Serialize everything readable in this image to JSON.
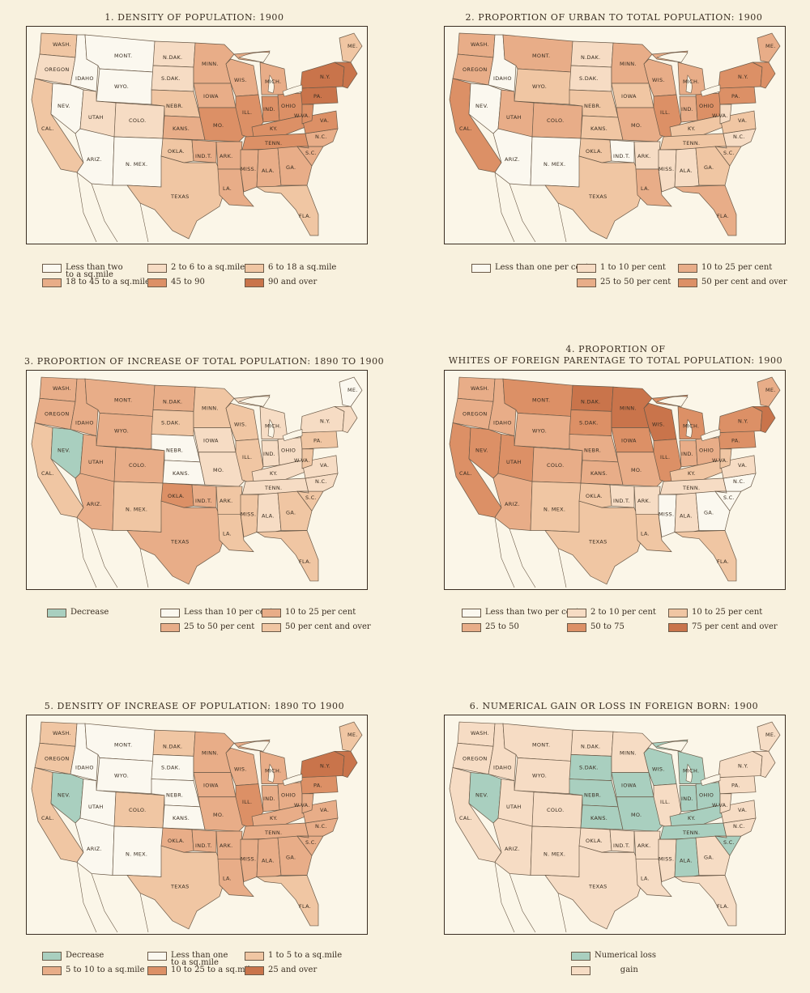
{
  "colors": {
    "white": "#fbf8ef",
    "c1": "#f6dcc4",
    "c2": "#f0c6a3",
    "c3": "#e8ad88",
    "c4": "#dc9066",
    "c5": "#c9744b",
    "green": "#a9cfbf",
    "border": "#6b5a48"
  },
  "maps": [
    {
      "title": "1. DENSITY OF POPULATION: 1900",
      "legend": [
        {
          "label": "Less than two\nto a sq.mile",
          "color": "white"
        },
        {
          "label": "2 to 6 to a sq.mile",
          "color": "c1"
        },
        {
          "label": "6 to 18 a sq.mile",
          "color": "c2"
        },
        {
          "label": "18 to 45 to a sq.mile",
          "color": "c3"
        },
        {
          "label": "45 to 90",
          "color": "c4"
        },
        {
          "label": "90 and over",
          "color": "c5"
        }
      ],
      "fill": {
        "WASH": "c2",
        "OREGON": "c1",
        "CAL": "c2",
        "IDAHO": "white",
        "NEV": "white",
        "MONT": "white",
        "WYO": "white",
        "UTAH": "c1",
        "COLO": "c1",
        "ARIZ": "white",
        "NMEX": "white",
        "NDAK": "c1",
        "SDAK": "c1",
        "NEBR": "c2",
        "KANS": "c3",
        "OKLA": "c2",
        "INDT": "c3",
        "TEXAS": "c2",
        "MINN": "c3",
        "IOWA": "c3",
        "MO": "c4",
        "ARK": "c3",
        "LA": "c3",
        "WIS": "c3",
        "ILL": "c4",
        "MICH": "c3",
        "IND": "c4",
        "OHIO": "c4",
        "KY": "c4",
        "TENN": "c4",
        "MISS": "c3",
        "ALA": "c3",
        "GA": "c3",
        "FLA": "c2",
        "SC": "c3",
        "NC": "c3",
        "VA": "c4",
        "WVA": "c4",
        "PA": "c5",
        "NY": "c5",
        "ME": "c2",
        "NE": "c5"
      }
    },
    {
      "title": "2. PROPORTION OF URBAN TO TOTAL POPULATION: 1900",
      "legend": [
        {
          "label": "Less than one per cent",
          "color": "white"
        },
        {
          "label": "1 to 10 per cent",
          "color": "c1"
        },
        {
          "label": "10 to 25 per cent",
          "color": "c3"
        },
        {
          "label": "25 to 50 per cent",
          "color": "c3"
        },
        {
          "label": "50 per cent and over",
          "color": "c4"
        }
      ],
      "fill": {
        "WASH": "c3",
        "OREGON": "c3",
        "CAL": "c4",
        "IDAHO": "white",
        "NEV": "white",
        "MONT": "c3",
        "WYO": "c2",
        "UTAH": "c3",
        "COLO": "c3",
        "ARIZ": "white",
        "NMEX": "white",
        "NDAK": "c1",
        "SDAK": "c1",
        "NEBR": "c2",
        "KANS": "c2",
        "OKLA": "c2",
        "INDT": "white",
        "TEXAS": "c2",
        "MINN": "c3",
        "IOWA": "c2",
        "MO": "c3",
        "ARK": "c1",
        "LA": "c3",
        "WIS": "c3",
        "ILL": "c4",
        "MICH": "c3",
        "IND": "c3",
        "OHIO": "c4",
        "KY": "c2",
        "TENN": "c2",
        "MISS": "c1",
        "ALA": "c1",
        "GA": "c2",
        "FLA": "c3",
        "SC": "c2",
        "NC": "c1",
        "VA": "c2",
        "WVA": "c1",
        "PA": "c4",
        "NY": "c4",
        "ME": "c3",
        "NE": "c4"
      }
    },
    {
      "title": "3. PROPORTION OF INCREASE OF TOTAL POPULATION: 1890 TO 1900",
      "legend": [
        {
          "label": "Decrease",
          "color": "green"
        },
        {
          "label": "Less than 10 per cent",
          "color": "white"
        },
        {
          "label": "10 to 25 per cent",
          "color": "c3"
        },
        {
          "label": "25 to 50 per cent",
          "color": "c3"
        },
        {
          "label": "50 per cent and over",
          "color": "c2"
        }
      ],
      "fill": {
        "WASH": "c3",
        "OREGON": "c3",
        "CAL": "c2",
        "IDAHO": "c3",
        "NEV": "green",
        "MONT": "c3",
        "WYO": "c3",
        "UTAH": "c3",
        "COLO": "c3",
        "ARIZ": "c3",
        "NMEX": "c2",
        "NDAK": "c3",
        "SDAK": "c2",
        "NEBR": "white",
        "KANS": "white",
        "OKLA": "c4",
        "INDT": "c3",
        "TEXAS": "c3",
        "MINN": "c2",
        "IOWA": "c1",
        "MO": "c1",
        "ARK": "c2",
        "LA": "c2",
        "WIS": "c2",
        "ILL": "c2",
        "MICH": "c1",
        "IND": "c1",
        "OHIO": "c1",
        "KY": "c1",
        "TENN": "c1",
        "MISS": "c2",
        "ALA": "c1",
        "GA": "c2",
        "FLA": "c2",
        "SC": "c2",
        "NC": "c1",
        "VA": "c1",
        "WVA": "c2",
        "PA": "c2",
        "NY": "c1",
        "ME": "white",
        "NE": "c1"
      }
    },
    {
      "title": "4. PROPORTION OF\nWHITES OF FOREIGN PARENTAGE TO TOTAL POPULATION: 1900",
      "legend": [
        {
          "label": "Less than two per cent",
          "color": "white"
        },
        {
          "label": "2 to 10 per cent",
          "color": "c1"
        },
        {
          "label": "10 to 25 per cent",
          "color": "c2"
        },
        {
          "label": "25 to 50",
          "color": "c3"
        },
        {
          "label": "50 to 75",
          "color": "c4"
        },
        {
          "label": "75 per cent and over",
          "color": "c5"
        }
      ],
      "fill": {
        "WASH": "c3",
        "OREGON": "c3",
        "CAL": "c4",
        "IDAHO": "c3",
        "NEV": "c4",
        "MONT": "c4",
        "WYO": "c3",
        "UTAH": "c4",
        "COLO": "c3",
        "ARIZ": "c3",
        "NMEX": "c2",
        "NDAK": "c5",
        "SDAK": "c4",
        "NEBR": "c3",
        "KANS": "c3",
        "OKLA": "c2",
        "INDT": "c1",
        "TEXAS": "c2",
        "MINN": "c5",
        "IOWA": "c4",
        "MO": "c3",
        "ARK": "c1",
        "LA": "c2",
        "WIS": "c5",
        "ILL": "c4",
        "MICH": "c4",
        "IND": "c3",
        "OHIO": "c3",
        "KY": "c2",
        "TENN": "c1",
        "MISS": "white",
        "ALA": "c1",
        "GA": "white",
        "FLA": "c2",
        "SC": "white",
        "NC": "white",
        "VA": "c1",
        "WVA": "c2",
        "PA": "c4",
        "NY": "c4",
        "ME": "c3",
        "NE": "c5"
      }
    },
    {
      "title": "5. DENSITY OF INCREASE OF POPULATION: 1890 TO 1900",
      "legend": [
        {
          "label": "Decrease",
          "color": "green"
        },
        {
          "label": "Less than one\nto a sq.mile",
          "color": "white"
        },
        {
          "label": "1 to 5 to a sq.mile",
          "color": "c2"
        },
        {
          "label": "5 to 10 to a sq.mile",
          "color": "c3"
        },
        {
          "label": "10 to 25 to a sq.mile",
          "color": "c4"
        },
        {
          "label": "25 and over",
          "color": "c5"
        }
      ],
      "fill": {
        "WASH": "c2",
        "OREGON": "c2",
        "CAL": "c2",
        "IDAHO": "white",
        "NEV": "green",
        "MONT": "white",
        "WYO": "white",
        "UTAH": "white",
        "COLO": "c2",
        "ARIZ": "white",
        "NMEX": "white",
        "NDAK": "c2",
        "SDAK": "white",
        "NEBR": "white",
        "KANS": "white",
        "OKLA": "c3",
        "INDT": "c3",
        "TEXAS": "c2",
        "MINN": "c3",
        "IOWA": "c3",
        "MO": "c3",
        "ARK": "c3",
        "LA": "c3",
        "WIS": "c3",
        "ILL": "c4",
        "MICH": "c3",
        "IND": "c3",
        "OHIO": "c3",
        "KY": "c3",
        "TENN": "c3",
        "MISS": "c3",
        "ALA": "c3",
        "GA": "c3",
        "FLA": "c2",
        "SC": "c3",
        "NC": "c3",
        "VA": "c3",
        "WVA": "c3",
        "PA": "c4",
        "NY": "c5",
        "ME": "c2",
        "NE": "c5"
      }
    },
    {
      "title": "6. NUMERICAL GAIN OR LOSS IN FOREIGN BORN: 1900",
      "legend": [
        {
          "label": "Numerical loss",
          "color": "green"
        },
        {
          "label": "          gain",
          "color": "c1"
        }
      ],
      "fill": {
        "WASH": "c1",
        "OREGON": "c1",
        "CAL": "c1",
        "IDAHO": "c1",
        "NEV": "green",
        "MONT": "c1",
        "WYO": "c1",
        "UTAH": "c1",
        "COLO": "c1",
        "ARIZ": "c1",
        "NMEX": "c1",
        "NDAK": "c1",
        "SDAK": "green",
        "NEBR": "green",
        "KANS": "green",
        "OKLA": "c1",
        "INDT": "c1",
        "TEXAS": "c1",
        "MINN": "c1",
        "IOWA": "green",
        "MO": "green",
        "ARK": "c1",
        "LA": "c1",
        "WIS": "green",
        "ILL": "c1",
        "MICH": "green",
        "IND": "green",
        "OHIO": "green",
        "KY": "green",
        "TENN": "green",
        "MISS": "c1",
        "ALA": "green",
        "GA": "c1",
        "FLA": "c1",
        "SC": "green",
        "NC": "c1",
        "VA": "c1",
        "WVA": "c1",
        "PA": "c1",
        "NY": "c1",
        "ME": "c1",
        "NE": "c1"
      }
    }
  ],
  "state_labels": {
    "WASH": "WASH.",
    "OREGON": "OREGON",
    "CAL": "CAL.",
    "IDAHO": "IDAHO",
    "NEV": "NEV.",
    "MONT": "MONT.",
    "WYO": "WYO.",
    "UTAH": "UTAH",
    "COLO": "COLO.",
    "ARIZ": "ARIZ.",
    "NMEX": "N. MEX.",
    "NDAK": "N.DAK.",
    "SDAK": "S.DAK.",
    "NEBR": "NEBR.",
    "KANS": "KANS.",
    "OKLA": "OKLA.",
    "INDT": "IND.T.",
    "TEXAS": "TEXAS",
    "MINN": "MINN.",
    "IOWA": "IOWA",
    "MO": "MO.",
    "ARK": "ARK.",
    "LA": "LA.",
    "WIS": "WIS.",
    "ILL": "ILL.",
    "MICH": "MICH.",
    "IND": "IND.",
    "OHIO": "OHIO",
    "KY": "KY.",
    "TENN": "TENN.",
    "MISS": "MISS.",
    "ALA": "ALA.",
    "GA": "GA.",
    "FLA": "FLA.",
    "SC": "S.C.",
    "NC": "N.C.",
    "VA": "VA.",
    "WVA": "W.VA.",
    "PA": "PA.",
    "NY": "N.Y.",
    "ME": "ME."
  }
}
